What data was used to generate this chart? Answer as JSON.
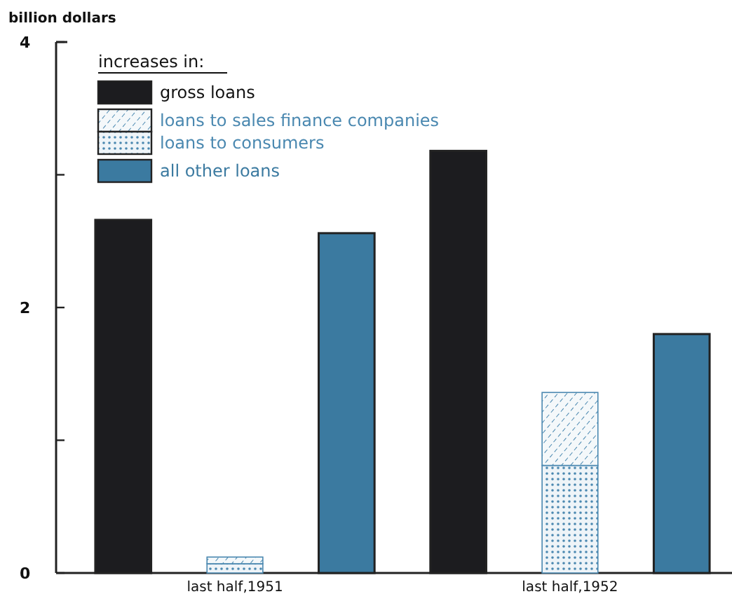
{
  "chart_data": {
    "type": "bar",
    "stacked": true,
    "ylabel": "billion dollars",
    "legend_title": "increases in:",
    "legend": "top left",
    "categories": [
      null,
      "last half,1951",
      null,
      null,
      "last half,1952",
      null
    ],
    "ylim": [
      0,
      4
    ],
    "yticks": [
      0,
      {
        "value": 1,
        "label": null
      },
      2,
      {
        "value": 3,
        "label": null
      },
      4
    ],
    "series": [
      {
        "name": "gross loans",
        "color": "#1c1c1f",
        "values": [
          2.66,
          null,
          null,
          3.18,
          null,
          null
        ]
      },
      {
        "name": "loans to consumers",
        "color": "#4a88b0",
        "values": [
          null,
          0.07,
          null,
          null,
          0.81,
          null
        ]
      },
      {
        "name": "loans to sales finance companies",
        "color": "#4a88b0",
        "values": [
          null,
          0.05,
          null,
          null,
          0.55,
          null
        ]
      },
      {
        "name": "all other loans",
        "color": "#3b7aa0",
        "values": [
          null,
          null,
          2.56,
          null,
          null,
          1.8
        ]
      }
    ]
  }
}
